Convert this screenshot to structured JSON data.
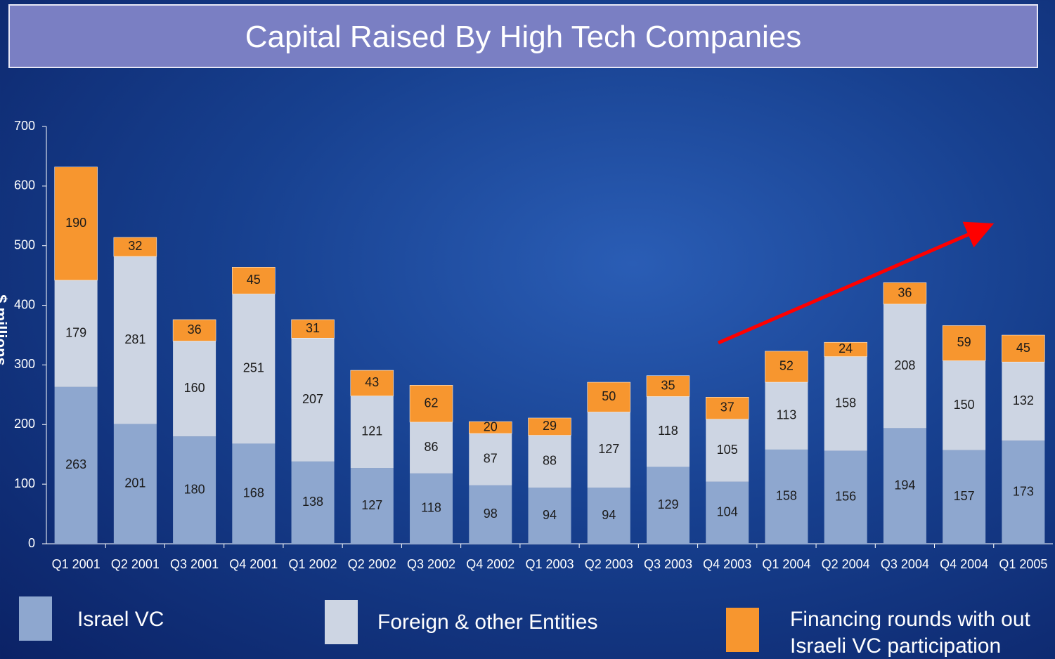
{
  "chart_data": {
    "type": "stacked_bar",
    "title": "Capital Raised By High Tech Companies",
    "y_label": "$ millions",
    "categories": [
      "Q1 2001",
      "Q2 2001",
      "Q3 2001",
      "Q4 2001",
      "Q1 2002",
      "Q2 2002",
      "Q3 2002",
      "Q4 2002",
      "Q1 2003",
      "Q2 2003",
      "Q3 2003",
      "Q4 2003",
      "Q1 2004",
      "Q2 2004",
      "Q3 2004",
      "Q4 2004",
      "Q1 2005"
    ],
    "series": [
      {
        "name": "Israel VC",
        "color": "#8ea7cf",
        "values": [
          263,
          201,
          180,
          168,
          138,
          127,
          118,
          98,
          94,
          94,
          129,
          104,
          158,
          156,
          194,
          157,
          173
        ]
      },
      {
        "name": "Foreign & other Entities",
        "color": "#cdd5e3",
        "values": [
          179,
          281,
          160,
          251,
          207,
          121,
          86,
          87,
          88,
          127,
          118,
          105,
          113,
          158,
          208,
          150,
          132
        ]
      },
      {
        "name": "Financing rounds with out Israeli VC participation",
        "color": "#f7962f",
        "values": [
          190,
          32,
          36,
          45,
          31,
          43,
          62,
          20,
          29,
          50,
          35,
          37,
          52,
          24,
          36,
          59,
          45
        ]
      }
    ],
    "ylim": [
      0,
      700
    ],
    "yticks": [
      0,
      100,
      200,
      300,
      400,
      500,
      600,
      700
    ]
  }
}
